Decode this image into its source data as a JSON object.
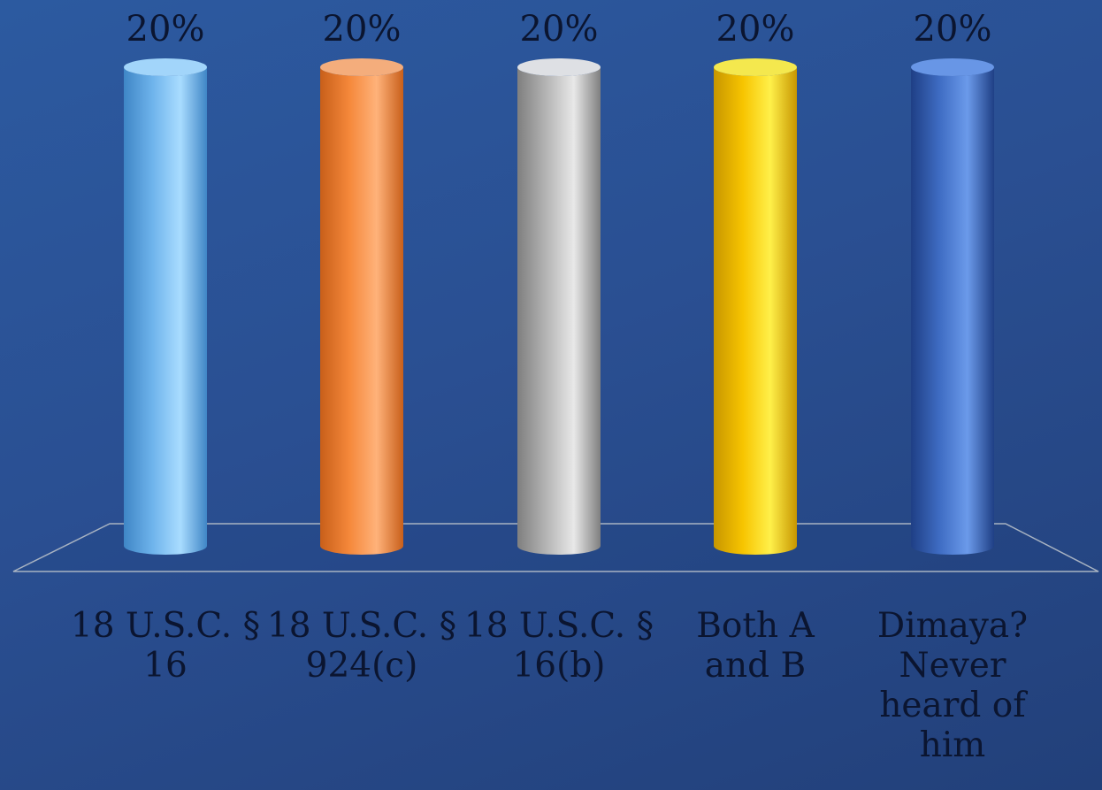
{
  "chart_data": {
    "type": "bar",
    "style": "3d-cylinder",
    "categories": [
      [
        "18 U.S.C. §",
        "16"
      ],
      [
        "18 U.S.C. §",
        "924(c)"
      ],
      [
        "18 U.S.C. §",
        "16(b)"
      ],
      [
        "Both A",
        "and B"
      ],
      [
        "Dimaya?",
        "Never",
        "heard of",
        "him"
      ]
    ],
    "values": [
      20,
      20,
      20,
      20,
      20
    ],
    "data_labels": [
      "20%",
      "20%",
      "20%",
      "20%",
      "20%"
    ],
    "unit": "%",
    "ylim": [
      0,
      20
    ],
    "grid": false,
    "legend": "none",
    "colors": [
      {
        "base": "#6fb4ec",
        "light": "#a9dcff",
        "dark": "#3f86c6"
      },
      {
        "base": "#f5883a",
        "light": "#ffb27a",
        "dark": "#c85f1a"
      },
      {
        "base": "#b5b5b5",
        "light": "#e8e8e8",
        "dark": "#7f7f7f"
      },
      {
        "base": "#f7c400",
        "light": "#fff04a",
        "dark": "#c79600"
      },
      {
        "base": "#3f6dc4",
        "light": "#6b9aea",
        "dark": "#1f3f85"
      }
    ]
  }
}
